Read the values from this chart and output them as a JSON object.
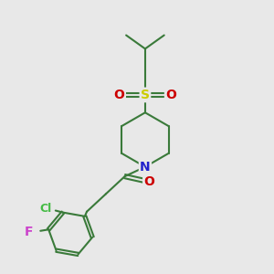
{
  "background_color": "#e8e8e8",
  "bond_color": "#3a7a3a",
  "atom_colors": {
    "N": "#2222cc",
    "O": "#cc0000",
    "S": "#cccc00",
    "Cl": "#44bb44",
    "F": "#cc44cc"
  },
  "bond_width": 1.5,
  "figsize": [
    3.0,
    3.0
  ],
  "dpi": 100,
  "xlim": [
    0,
    10
  ],
  "ylim": [
    0,
    10
  ]
}
